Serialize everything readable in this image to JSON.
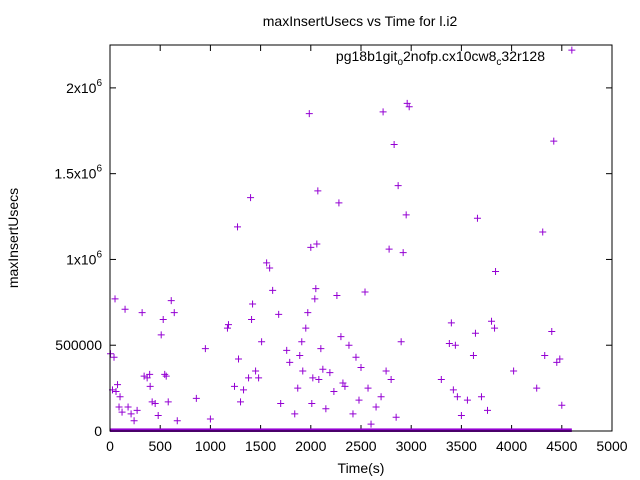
{
  "chart_data": {
    "type": "scatter",
    "title": "maxInsertUsecs vs Time for l.i2",
    "xlabel": "Time(s)",
    "ylabel": "maxInsertUsecs",
    "xlim": [
      0,
      5000
    ],
    "ylim": [
      0,
      2250000
    ],
    "x_ticks": [
      {
        "value": 0,
        "label": "0"
      },
      {
        "value": 500,
        "label": "500"
      },
      {
        "value": 1000,
        "label": "1000"
      },
      {
        "value": 1500,
        "label": "1500"
      },
      {
        "value": 2000,
        "label": "2000"
      },
      {
        "value": 2500,
        "label": "2500"
      },
      {
        "value": 3000,
        "label": "3000"
      },
      {
        "value": 3500,
        "label": "3500"
      },
      {
        "value": 4000,
        "label": "4000"
      },
      {
        "value": 4500,
        "label": "4500"
      },
      {
        "value": 5000,
        "label": "5000"
      }
    ],
    "y_ticks": [
      {
        "value": 0,
        "base": "0",
        "exp": ""
      },
      {
        "value": 500000,
        "base": "500000",
        "exp": ""
      },
      {
        "value": 1000000,
        "base": "1x10",
        "exp": "6"
      },
      {
        "value": 1500000,
        "base": "1.5x10",
        "exp": "6"
      },
      {
        "value": 2000000,
        "base": "2x10",
        "exp": "6"
      }
    ],
    "legend": {
      "position": "top-right",
      "text_parts": [
        {
          "t": "pg18b1git",
          "sub": false
        },
        {
          "t": "o",
          "sub": true
        },
        {
          "t": "2nofp.cx10cw8",
          "sub": false
        },
        {
          "t": "c",
          "sub": true
        },
        {
          "t": "32r128",
          "sub": false
        }
      ]
    },
    "marker": "+",
    "color": "#9400d3",
    "baseline_band": {
      "x_start": 0,
      "x_end": 4600,
      "y_max": 15000
    },
    "series": [
      {
        "points": [
          [
            5,
            450000
          ],
          [
            25,
            240000
          ],
          [
            40,
            430000
          ],
          [
            50,
            770000
          ],
          [
            60,
            230000
          ],
          [
            75,
            270000
          ],
          [
            90,
            140000
          ],
          [
            100,
            200000
          ],
          [
            120,
            110000
          ],
          [
            150,
            710000
          ],
          [
            180,
            140000
          ],
          [
            210,
            100000
          ],
          [
            240,
            60000
          ],
          [
            270,
            120000
          ],
          [
            320,
            690000
          ],
          [
            340,
            320000
          ],
          [
            370,
            310000
          ],
          [
            395,
            330000
          ],
          [
            400,
            260000
          ],
          [
            420,
            170000
          ],
          [
            450,
            160000
          ],
          [
            480,
            90000
          ],
          [
            510,
            560000
          ],
          [
            530,
            650000
          ],
          [
            545,
            330000
          ],
          [
            560,
            320000
          ],
          [
            580,
            170000
          ],
          [
            610,
            760000
          ],
          [
            640,
            690000
          ],
          [
            670,
            60000
          ],
          [
            860,
            190000
          ],
          [
            950,
            480000
          ],
          [
            1000,
            70000
          ],
          [
            1170,
            600000
          ],
          [
            1180,
            620000
          ],
          [
            1240,
            260000
          ],
          [
            1270,
            1190000
          ],
          [
            1280,
            420000
          ],
          [
            1300,
            170000
          ],
          [
            1330,
            240000
          ],
          [
            1380,
            310000
          ],
          [
            1400,
            1360000
          ],
          [
            1410,
            650000
          ],
          [
            1420,
            740000
          ],
          [
            1450,
            350000
          ],
          [
            1480,
            310000
          ],
          [
            1510,
            520000
          ],
          [
            1560,
            980000
          ],
          [
            1590,
            950000
          ],
          [
            1620,
            820000
          ],
          [
            1680,
            680000
          ],
          [
            1700,
            160000
          ],
          [
            1760,
            470000
          ],
          [
            1790,
            400000
          ],
          [
            1840,
            100000
          ],
          [
            1870,
            250000
          ],
          [
            1890,
            440000
          ],
          [
            1910,
            520000
          ],
          [
            1920,
            350000
          ],
          [
            1950,
            600000
          ],
          [
            1970,
            690000
          ],
          [
            1985,
            1850000
          ],
          [
            2000,
            1070000
          ],
          [
            2010,
            160000
          ],
          [
            2020,
            310000
          ],
          [
            2040,
            770000
          ],
          [
            2050,
            830000
          ],
          [
            2060,
            1090000
          ],
          [
            2070,
            1400000
          ],
          [
            2080,
            300000
          ],
          [
            2100,
            480000
          ],
          [
            2120,
            360000
          ],
          [
            2150,
            130000
          ],
          [
            2190,
            340000
          ],
          [
            2230,
            230000
          ],
          [
            2260,
            790000
          ],
          [
            2280,
            1330000
          ],
          [
            2300,
            550000
          ],
          [
            2320,
            280000
          ],
          [
            2340,
            260000
          ],
          [
            2380,
            500000
          ],
          [
            2420,
            100000
          ],
          [
            2450,
            430000
          ],
          [
            2480,
            180000
          ],
          [
            2500,
            370000
          ],
          [
            2540,
            810000
          ],
          [
            2570,
            250000
          ],
          [
            2600,
            40000
          ],
          [
            2650,
            140000
          ],
          [
            2700,
            200000
          ],
          [
            2720,
            1860000
          ],
          [
            2750,
            350000
          ],
          [
            2780,
            1060000
          ],
          [
            2800,
            300000
          ],
          [
            2830,
            1670000
          ],
          [
            2850,
            80000
          ],
          [
            2870,
            1430000
          ],
          [
            2900,
            520000
          ],
          [
            2920,
            1040000
          ],
          [
            2950,
            1260000
          ],
          [
            2960,
            1910000
          ],
          [
            2980,
            1890000
          ],
          [
            3300,
            300000
          ],
          [
            3380,
            510000
          ],
          [
            3400,
            630000
          ],
          [
            3420,
            240000
          ],
          [
            3440,
            500000
          ],
          [
            3460,
            200000
          ],
          [
            3500,
            90000
          ],
          [
            3560,
            180000
          ],
          [
            3620,
            440000
          ],
          [
            3640,
            570000
          ],
          [
            3660,
            1240000
          ],
          [
            3700,
            200000
          ],
          [
            3760,
            120000
          ],
          [
            3800,
            640000
          ],
          [
            3830,
            600000
          ],
          [
            3840,
            930000
          ],
          [
            4020,
            350000
          ],
          [
            4250,
            250000
          ],
          [
            4310,
            1160000
          ],
          [
            4330,
            440000
          ],
          [
            4400,
            580000
          ],
          [
            4420,
            1690000
          ],
          [
            4450,
            400000
          ],
          [
            4480,
            420000
          ],
          [
            4500,
            150000
          ],
          [
            4600,
            2220000
          ]
        ]
      }
    ]
  }
}
